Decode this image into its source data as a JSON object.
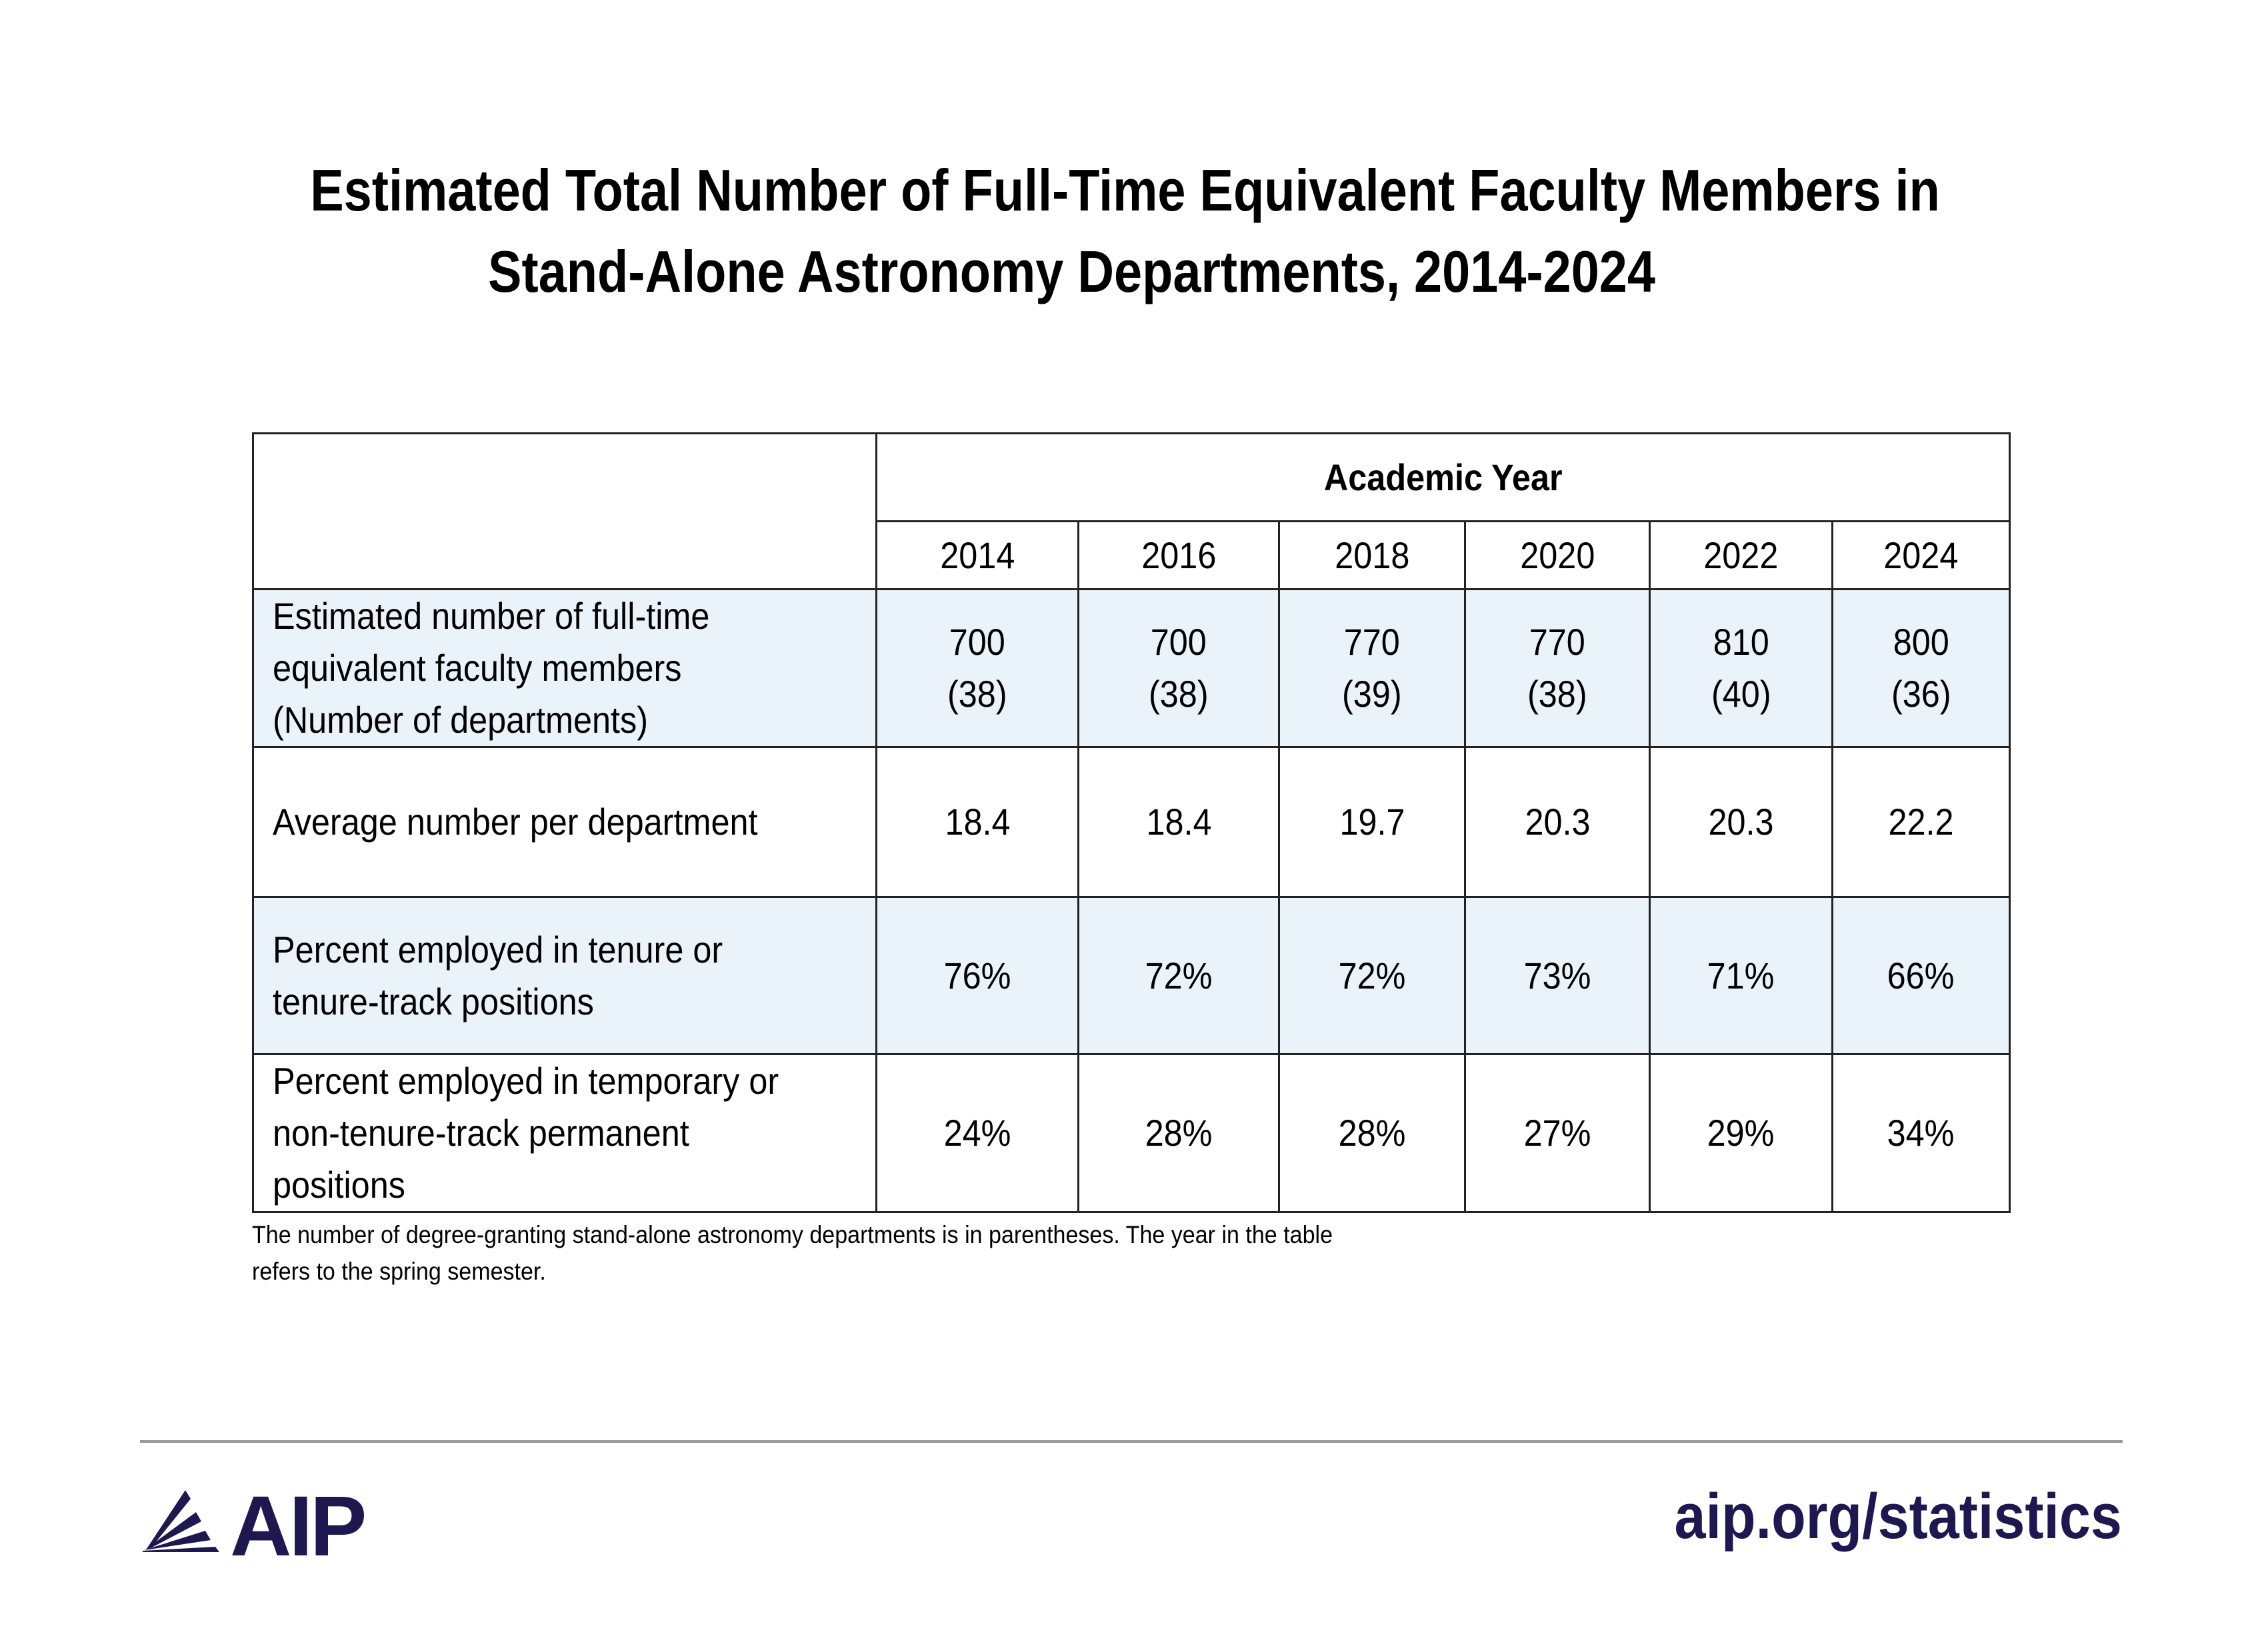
{
  "title": {
    "line1": "Estimated Total Number of Full-Time Equivalent Faculty Members in",
    "line2": "Stand-Alone Astronomy Departments, 2014-2024"
  },
  "table": {
    "group_header": "Academic Year",
    "years": [
      "2014",
      "2016",
      "2018",
      "2020",
      "2022",
      "2024"
    ],
    "rows": [
      {
        "label": [
          "Estimated number of full-time",
          "equivalent faculty members",
          "(Number of departments)"
        ],
        "values": [
          [
            "700",
            "(38)"
          ],
          [
            "700",
            "(38)"
          ],
          [
            "770",
            "(39)"
          ],
          [
            "770",
            "(38)"
          ],
          [
            "810",
            "(40)"
          ],
          [
            "800",
            "(36)"
          ]
        ]
      },
      {
        "label": [
          "Average number per department"
        ],
        "values": [
          [
            "18.4"
          ],
          [
            "18.4"
          ],
          [
            "19.7"
          ],
          [
            "20.3"
          ],
          [
            "20.3"
          ],
          [
            "22.2"
          ]
        ]
      },
      {
        "label": [
          "Percent employed in tenure or",
          "tenure-track positions"
        ],
        "values": [
          [
            "76%"
          ],
          [
            "72%"
          ],
          [
            "72%"
          ],
          [
            "73%"
          ],
          [
            "71%"
          ],
          [
            "66%"
          ]
        ]
      },
      {
        "label": [
          "Percent employed in temporary or",
          "non-tenure-track permanent",
          "positions"
        ],
        "values": [
          [
            "24%"
          ],
          [
            "28%"
          ],
          [
            "28%"
          ],
          [
            "27%"
          ],
          [
            "29%"
          ],
          [
            "34%"
          ]
        ]
      }
    ],
    "shade_color": "#ebf3fa"
  },
  "footnote": {
    "line1": "The number of degree-granting stand-alone astronomy departments is in parentheses. The year in the table",
    "line2": "refers to the spring semester."
  },
  "footer": {
    "logo_text": "AIP",
    "url": "aip.org/statistics",
    "brand_color": "#1e1850"
  }
}
